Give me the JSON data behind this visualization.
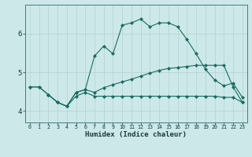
{
  "xlabel": "Humidex (Indice chaleur)",
  "bg_color": "#cce8e8",
  "line_color": "#1a6b60",
  "grid_color": "#b8d4d4",
  "xlim": [
    -0.5,
    23.5
  ],
  "ylim": [
    3.7,
    6.75
  ],
  "line1_x": [
    0,
    1,
    2,
    3,
    4,
    5,
    6,
    7,
    8,
    9,
    10,
    11,
    12,
    13,
    14,
    15,
    16,
    17,
    18,
    19,
    20,
    21,
    22,
    23
  ],
  "line1_y": [
    4.62,
    4.62,
    4.42,
    4.22,
    4.12,
    4.38,
    4.48,
    4.38,
    4.38,
    4.38,
    4.38,
    4.38,
    4.38,
    4.38,
    4.38,
    4.38,
    4.38,
    4.38,
    4.38,
    4.38,
    4.38,
    4.35,
    4.35,
    4.22
  ],
  "line2_x": [
    0,
    1,
    2,
    3,
    4,
    5,
    6,
    7,
    8,
    9,
    10,
    11,
    12,
    13,
    14,
    15,
    16,
    17,
    18,
    19,
    20,
    21,
    22,
    23
  ],
  "line2_y": [
    4.62,
    4.62,
    4.42,
    4.22,
    4.12,
    4.48,
    4.55,
    4.48,
    4.6,
    4.68,
    4.75,
    4.82,
    4.9,
    4.98,
    5.05,
    5.1,
    5.12,
    5.15,
    5.18,
    5.18,
    5.18,
    5.18,
    4.62,
    4.22
  ],
  "line3_x": [
    2,
    3,
    4,
    5,
    6,
    7,
    8,
    9,
    10,
    11,
    12,
    13,
    14,
    15,
    16,
    17,
    18,
    19,
    20,
    21,
    22,
    23
  ],
  "line3_y": [
    4.42,
    4.22,
    4.12,
    4.48,
    4.55,
    5.42,
    5.68,
    5.48,
    6.22,
    6.28,
    6.38,
    6.18,
    6.28,
    6.28,
    6.18,
    5.85,
    5.48,
    5.08,
    4.8,
    4.65,
    4.72,
    4.35
  ],
  "xticks": [
    0,
    1,
    2,
    3,
    4,
    5,
    6,
    7,
    8,
    9,
    10,
    11,
    12,
    13,
    14,
    15,
    16,
    17,
    18,
    19,
    20,
    21,
    22,
    23
  ],
  "yticks": [
    4,
    5,
    6
  ],
  "markersize": 2.5
}
